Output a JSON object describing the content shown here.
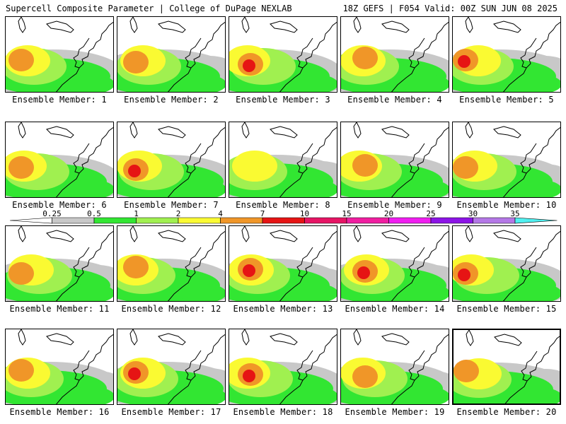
{
  "header": {
    "title": "Supercell Composite Parameter | College of DuPage NEXLAB",
    "run_info": "18Z GEFS | F054 Valid: 00Z SUN JUN 08 2025"
  },
  "members": [
    {
      "label": "Ensemble Member: 1",
      "peak": "orange"
    },
    {
      "label": "Ensemble Member: 2",
      "peak": "orange"
    },
    {
      "label": "Ensemble Member: 3",
      "peak": "red"
    },
    {
      "label": "Ensemble Member: 4",
      "peak": "orange"
    },
    {
      "label": "Ensemble Member: 5",
      "peak": "red"
    },
    {
      "label": "Ensemble Member: 6",
      "peak": "orange"
    },
    {
      "label": "Ensemble Member: 7",
      "peak": "red"
    },
    {
      "label": "Ensemble Member: 8",
      "peak": "yellow"
    },
    {
      "label": "Ensemble Member: 9",
      "peak": "orange"
    },
    {
      "label": "Ensemble Member: 10",
      "peak": "orange"
    },
    {
      "label": "Ensemble Member: 11",
      "peak": "orange"
    },
    {
      "label": "Ensemble Member: 12",
      "peak": "orange"
    },
    {
      "label": "Ensemble Member: 13",
      "peak": "red"
    },
    {
      "label": "Ensemble Member: 14",
      "peak": "red"
    },
    {
      "label": "Ensemble Member: 15",
      "peak": "red"
    },
    {
      "label": "Ensemble Member: 16",
      "peak": "orange"
    },
    {
      "label": "Ensemble Member: 17",
      "peak": "red"
    },
    {
      "label": "Ensemble Member: 18",
      "peak": "red"
    },
    {
      "label": "Ensemble Member: 19",
      "peak": "orange"
    },
    {
      "label": "Ensemble Member: 20",
      "peak": "orange"
    }
  ],
  "selected_member": 20,
  "colorbar": {
    "ticks": [
      "0.25",
      "0.5",
      "1",
      "2",
      "4",
      "7",
      "10",
      "15",
      "20",
      "25",
      "30",
      "35"
    ],
    "colors": [
      "#ffffff",
      "#c8c8c8",
      "#32e632",
      "#a0f050",
      "#fafa32",
      "#f09628",
      "#e61414",
      "#e61464",
      "#f01ea0",
      "#f01ef0",
      "#8c14e6",
      "#b478e6",
      "#50f0f0"
    ]
  },
  "legend_colors": {
    "gray": "#c8c8c8",
    "green": "#32e632",
    "lightgreen": "#a0f050",
    "yellow": "#fafa32",
    "orange": "#f09628",
    "red": "#e61414"
  }
}
